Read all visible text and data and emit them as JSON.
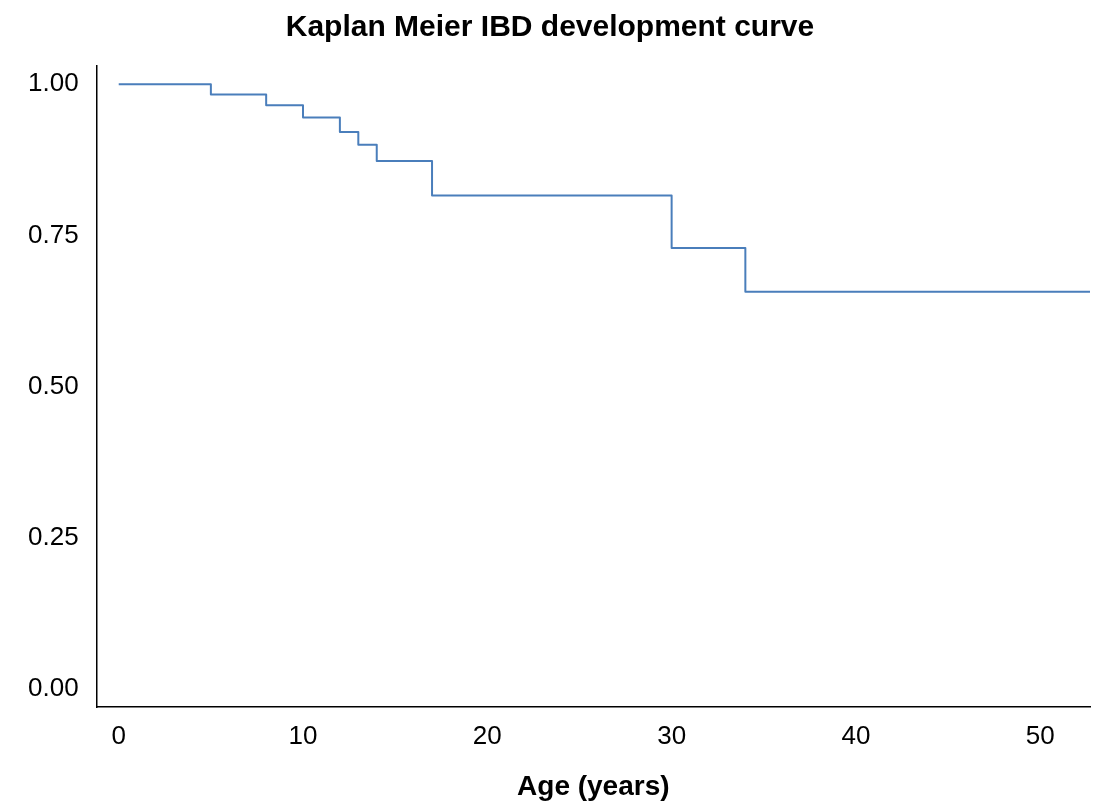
{
  "chart_data": {
    "type": "step",
    "title": "Kaplan Meier IBD development curve",
    "xlabel": "Age (years)",
    "x": [
      0,
      5,
      8,
      10,
      12,
      13,
      14,
      17,
      30,
      34,
      52.7
    ],
    "series": [
      {
        "color": "#4a7ebb",
        "values": [
          1.0,
          0.983,
          0.965,
          0.945,
          0.921,
          0.9,
          0.873,
          0.816,
          0.729,
          0.657,
          0.657
        ]
      }
    ],
    "xlim": [
      -1.2,
      52.7
    ],
    "xticks": [
      0,
      10,
      20,
      30,
      40,
      50
    ],
    "ylim": [
      -0.03,
      1.03
    ],
    "yticks": [
      {
        "value": 0,
        "label": "0.00"
      },
      {
        "value": 0.25,
        "label": "0.25"
      },
      {
        "value": 0.5,
        "label": "0.50"
      },
      {
        "value": 0.75,
        "label": "0.75"
      },
      {
        "value": 1,
        "label": "1.00"
      }
    ],
    "grid": false,
    "legend": false,
    "marker": "none",
    "line_style": "solid"
  }
}
